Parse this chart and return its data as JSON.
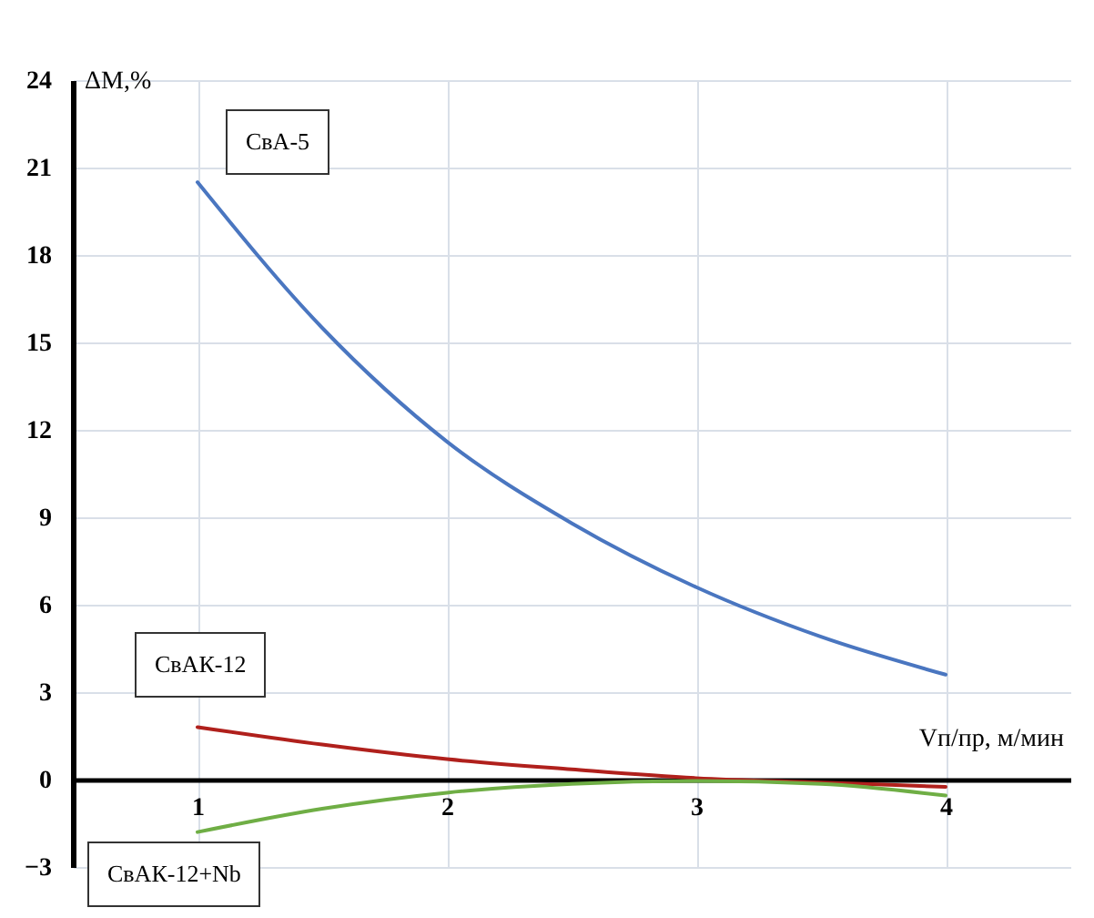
{
  "chart_data": {
    "type": "line",
    "xlabel": "Vп/пр, м/мин",
    "ylabel": "ΔM,%",
    "x": [
      1,
      1.5,
      2,
      2.5,
      3,
      3.5,
      4
    ],
    "series": [
      {
        "name": "СвА-5",
        "color": "#4a76c0",
        "values": [
          20.5,
          15.5,
          11.6,
          8.8,
          6.6,
          4.9,
          3.6
        ]
      },
      {
        "name": "СвАК-12",
        "color": "#b0201c",
        "values": [
          1.8,
          1.2,
          0.7,
          0.35,
          0.05,
          -0.1,
          -0.25
        ]
      },
      {
        "name": "СвАК-12+Nb",
        "color": "#6fae45",
        "values": [
          -1.8,
          -1.0,
          -0.45,
          -0.15,
          -0.05,
          -0.15,
          -0.55
        ]
      }
    ],
    "xlim": [
      0.5,
      4.5
    ],
    "xticks": [
      1,
      2,
      3,
      4
    ],
    "ylim": [
      -3,
      24
    ],
    "yticks": [
      -3,
      0,
      3,
      6,
      9,
      12,
      15,
      18,
      21,
      24
    ],
    "grid": true,
    "marker": "none",
    "line_style": "solid"
  }
}
